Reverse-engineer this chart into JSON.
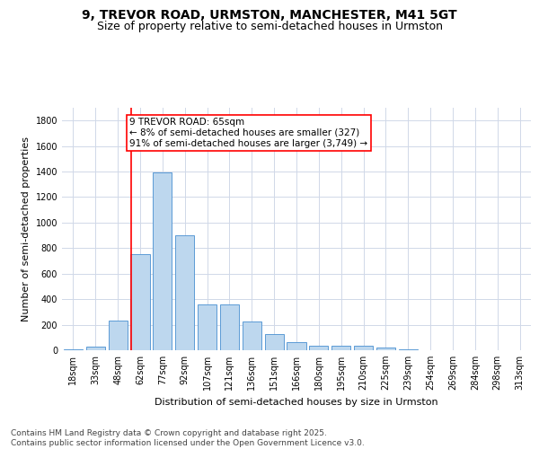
{
  "title_line1": "9, TREVOR ROAD, URMSTON, MANCHESTER, M41 5GT",
  "title_line2": "Size of property relative to semi-detached houses in Urmston",
  "xlabel": "Distribution of semi-detached houses by size in Urmston",
  "ylabel": "Number of semi-detached properties",
  "bar_labels": [
    "18sqm",
    "33sqm",
    "48sqm",
    "62sqm",
    "77sqm",
    "92sqm",
    "107sqm",
    "121sqm",
    "136sqm",
    "151sqm",
    "166sqm",
    "180sqm",
    "195sqm",
    "210sqm",
    "225sqm",
    "239sqm",
    "254sqm",
    "269sqm",
    "284sqm",
    "298sqm",
    "313sqm"
  ],
  "bar_values": [
    10,
    25,
    230,
    750,
    1390,
    900,
    360,
    360,
    225,
    125,
    60,
    35,
    35,
    35,
    20,
    5,
    0,
    0,
    0,
    0,
    0
  ],
  "bar_color": "#bdd7ee",
  "bar_edgecolor": "#5b9bd5",
  "vline_color": "red",
  "annotation_text": "9 TREVOR ROAD: 65sqm\n← 8% of semi-detached houses are smaller (327)\n91% of semi-detached houses are larger (3,749) →",
  "annotation_box_color": "white",
  "annotation_box_edgecolor": "red",
  "ylim": [
    0,
    1900
  ],
  "yticks": [
    0,
    200,
    400,
    600,
    800,
    1000,
    1200,
    1400,
    1600,
    1800
  ],
  "background_color": "#ffffff",
  "grid_color": "#d0d8e8",
  "footnote": "Contains HM Land Registry data © Crown copyright and database right 2025.\nContains public sector information licensed under the Open Government Licence v3.0.",
  "title_fontsize": 10,
  "subtitle_fontsize": 9,
  "axis_label_fontsize": 8,
  "tick_fontsize": 7,
  "annotation_fontsize": 7.5,
  "footnote_fontsize": 6.5
}
